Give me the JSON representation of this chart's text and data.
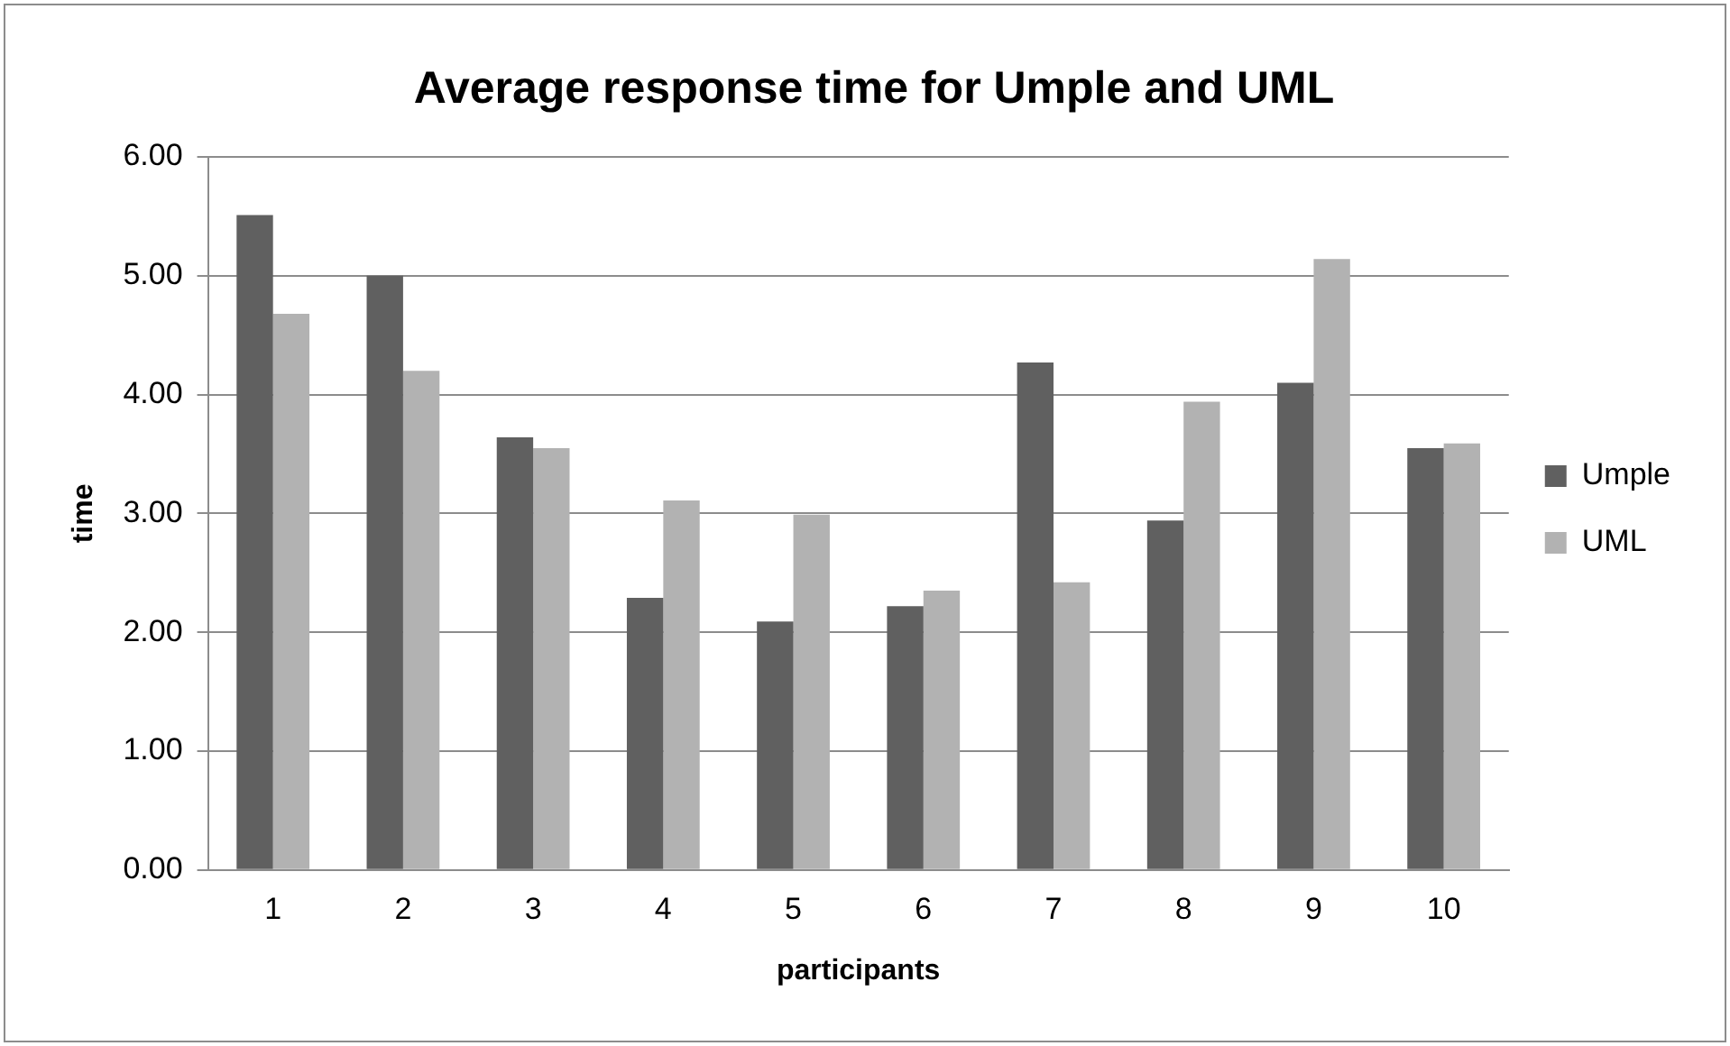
{
  "chart_data": {
    "type": "bar",
    "title": "Average response time for Umple and UML",
    "xlabel": "participants",
    "ylabel": "time",
    "categories": [
      "1",
      "2",
      "3",
      "4",
      "5",
      "6",
      "7",
      "8",
      "9",
      "10"
    ],
    "series": [
      {
        "name": "Umple",
        "color": "#606060",
        "values": [
          5.51,
          5.0,
          3.64,
          2.29,
          2.09,
          2.22,
          4.27,
          2.94,
          4.1,
          3.55
        ]
      },
      {
        "name": "UML",
        "color": "#b2b2b2",
        "values": [
          4.68,
          4.2,
          3.55,
          3.11,
          2.99,
          2.35,
          2.42,
          3.94,
          5.14,
          3.59
        ]
      }
    ],
    "ylim": [
      0,
      6
    ],
    "yticks": [
      {
        "value": 0,
        "label": "0.00"
      },
      {
        "value": 1,
        "label": "1.00"
      },
      {
        "value": 2,
        "label": "2.00"
      },
      {
        "value": 3,
        "label": "3.00"
      },
      {
        "value": 4,
        "label": "4.00"
      },
      {
        "value": 5,
        "label": "5.00"
      },
      {
        "value": 6,
        "label": "6.00"
      }
    ],
    "grid": "y",
    "legend": "right"
  }
}
